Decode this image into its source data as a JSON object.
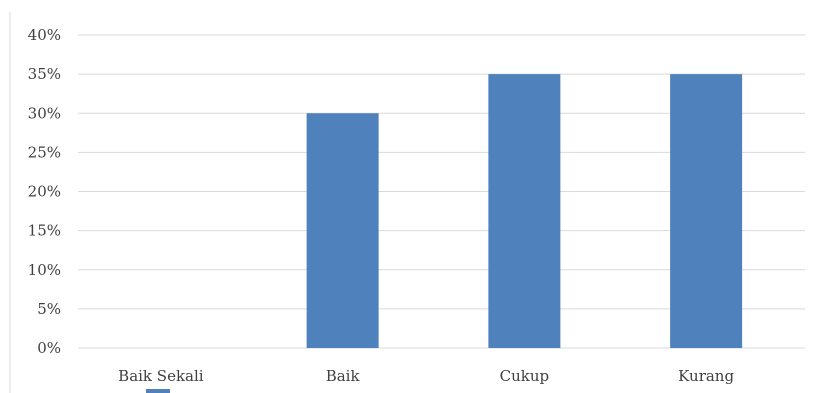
{
  "chart_data": {
    "type": "bar",
    "categories": [
      "Baik Sekali",
      "Baik",
      "Cukup",
      "Kurang"
    ],
    "values": [
      0,
      30,
      35,
      35
    ],
    "value_unit": "%",
    "title": "",
    "xlabel": "",
    "ylabel": "",
    "ylim": [
      0,
      40
    ],
    "yticks": [
      0,
      5,
      10,
      15,
      20,
      25,
      30,
      35,
      40
    ],
    "grid": true,
    "legend": "bottom",
    "bar_color": "#4f81bd",
    "grid_color": "#d9d9d9"
  }
}
